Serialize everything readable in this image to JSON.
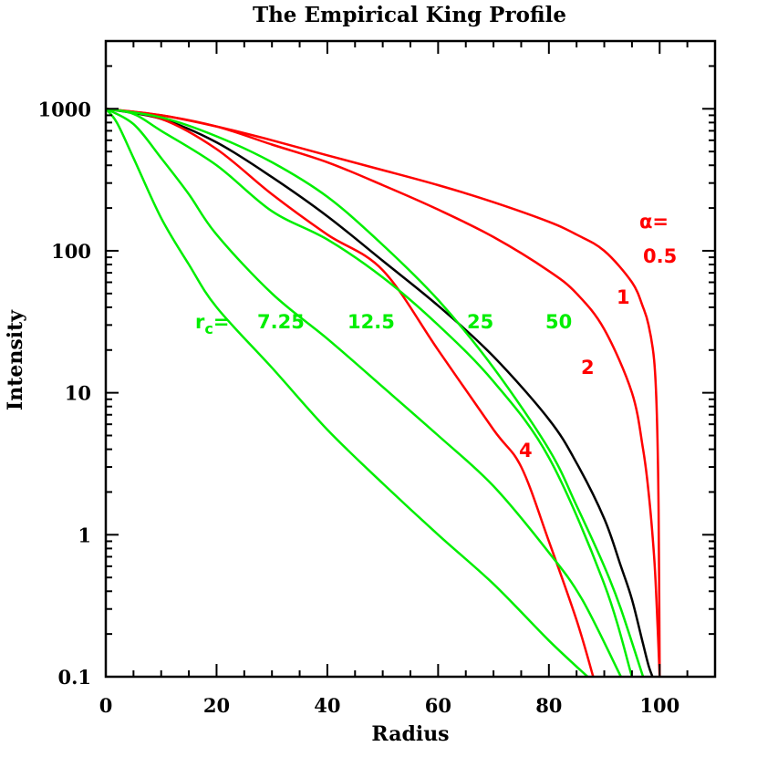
{
  "chart_data": {
    "type": "line",
    "title": "The Empirical King Profile",
    "xlabel": "Radius",
    "ylabel": "Intensity",
    "xlim": [
      0,
      110
    ],
    "ylim": [
      0.1,
      3000
    ],
    "yscale": "log",
    "x_ticks": [
      0,
      20,
      40,
      60,
      80,
      100
    ],
    "x_tick_labels": [
      "0",
      "20",
      "40",
      "60",
      "80",
      "100"
    ],
    "y_ticks": [
      0.1,
      1,
      10,
      100,
      1000
    ],
    "y_tick_labels": [
      "0.1",
      "1",
      "10",
      "100",
      "1000"
    ],
    "grid": false,
    "series": [
      {
        "group": "alpha",
        "name": "0.5",
        "color": "#ff0000",
        "x": [
          0,
          10,
          20,
          30,
          40,
          50,
          60,
          70,
          80,
          85,
          90,
          95,
          97,
          98,
          99,
          99.5,
          99.8,
          100
        ],
        "y": [
          1000,
          900,
          750,
          600,
          470,
          370,
          290,
          220,
          160,
          130,
          100,
          60,
          40,
          30,
          17,
          7,
          1.5,
          0.1
        ]
      },
      {
        "group": "alpha",
        "name": "1",
        "color": "#ff0000",
        "x": [
          0,
          10,
          20,
          30,
          40,
          50,
          60,
          70,
          80,
          85,
          90,
          95,
          97,
          98,
          99,
          99.5,
          100
        ],
        "y": [
          1000,
          900,
          750,
          560,
          420,
          290,
          195,
          125,
          72,
          50,
          28,
          10,
          4,
          2,
          0.7,
          0.3,
          0.1
        ]
      },
      {
        "group": "alpha",
        "name": "2",
        "color": "#000000",
        "x": [
          0,
          10,
          20,
          30,
          40,
          50,
          60,
          70,
          80,
          85,
          90,
          93,
          95,
          97,
          98,
          98.7
        ],
        "y": [
          1000,
          850,
          580,
          330,
          175,
          85,
          41,
          18,
          6.5,
          3.2,
          1.3,
          0.6,
          0.35,
          0.17,
          0.12,
          0.1
        ]
      },
      {
        "group": "alpha",
        "name": "4",
        "color": "#ff0000",
        "x": [
          0,
          10,
          20,
          30,
          40,
          50,
          60,
          70,
          75,
          80,
          85,
          88
        ],
        "y": [
          1000,
          850,
          520,
          250,
          130,
          73,
          20,
          5.5,
          3,
          0.9,
          0.25,
          0.1
        ]
      },
      {
        "group": "rc",
        "name": "7.25",
        "color": "#00ee00",
        "x": [
          0,
          2,
          5,
          10,
          15,
          20,
          30,
          40,
          50,
          60,
          70,
          80,
          87
        ],
        "y": [
          1000,
          800,
          450,
          170,
          80,
          40,
          15,
          5.5,
          2.3,
          1,
          0.45,
          0.18,
          0.1
        ]
      },
      {
        "group": "rc",
        "name": "12.5",
        "color": "#00ee00",
        "x": [
          0,
          5,
          10,
          15,
          20,
          30,
          40,
          50,
          60,
          70,
          80,
          86,
          93
        ],
        "y": [
          1000,
          780,
          450,
          250,
          130,
          50,
          24,
          11,
          5,
          2.2,
          0.75,
          0.35,
          0.1
        ]
      },
      {
        "group": "rc",
        "name": "25",
        "color": "#00ee00",
        "x": [
          0,
          5,
          10,
          20,
          30,
          40,
          50,
          60,
          70,
          80,
          90,
          95
        ],
        "y": [
          1000,
          920,
          700,
          400,
          190,
          120,
          65,
          30,
          12,
          3.5,
          0.45,
          0.1
        ]
      },
      {
        "group": "rc",
        "name": "50",
        "color": "#00ee00",
        "x": [
          0,
          10,
          20,
          30,
          40,
          50,
          60,
          70,
          80,
          85,
          90,
          93,
          97
        ],
        "y": [
          1000,
          870,
          640,
          420,
          240,
          110,
          45,
          15,
          4,
          1.6,
          0.6,
          0.3,
          0.1
        ]
      }
    ],
    "annotations": {
      "alpha_label": "α=",
      "alpha_values": [
        "0.5",
        "1",
        "2",
        "4"
      ],
      "rc_label_main": "r",
      "rc_label_sub": "c",
      "rc_label_eq": "=",
      "rc_values": [
        "7.25",
        "12.5",
        "25",
        "50"
      ]
    }
  }
}
